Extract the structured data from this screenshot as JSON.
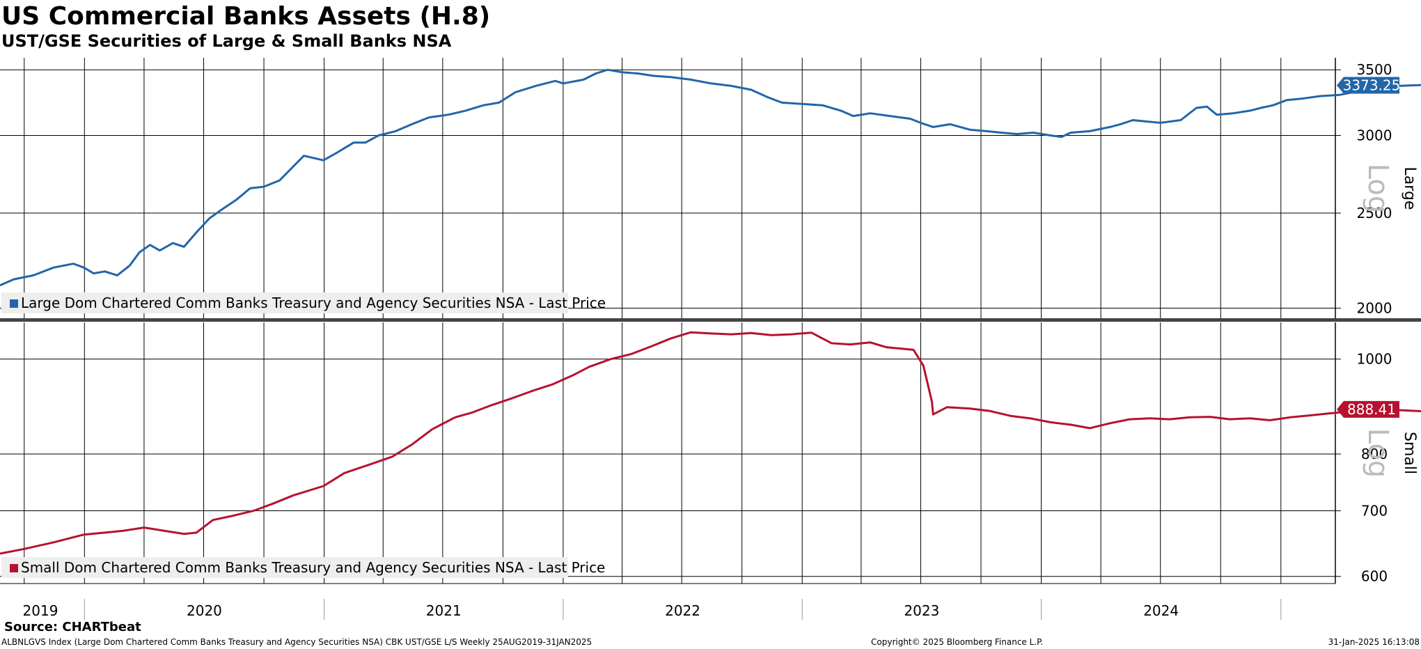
{
  "title": "US Commercial Banks Assets (H.8)",
  "subtitle": "UST/GSE Securities of Large & Small Banks NSA",
  "source": "Source: CHARTbeat",
  "footer": {
    "left": "ALBNLGVS Index (Large Dom Chartered Comm Banks Treasury and Agency Securities NSA) CBK UST/GSE L/S  Weekly 25AUG2019-31JAN2025",
    "center": "Copyright© 2025 Bloomberg Finance L.P.",
    "right": "31-Jan-2025 16:13:08"
  },
  "colors": {
    "large": "#2166a8",
    "small": "#b5122f",
    "grid": "#000000",
    "legend_bg": "#eeeeee",
    "divider": "#444444"
  },
  "chart_data": [
    {
      "type": "line",
      "panel": "Large",
      "scale": "log",
      "axis_label": "Log",
      "panel_label": "Large",
      "ylim": [
        1950,
        3600
      ],
      "yticks": [
        2000,
        2500,
        3000,
        3500
      ],
      "grid": true,
      "legend_placement": "bottom-left",
      "last_value_label": "3373.25",
      "series": [
        {
          "name": "Large Dom Chartered Comm Banks Treasury and Agency Securities NSA - Last Price",
          "color": "#2166a8",
          "points": [
            [
              "2019-08-25",
              2110
            ],
            [
              "2019-09-15",
              2140
            ],
            [
              "2019-10-15",
              2160
            ],
            [
              "2019-11-15",
              2200
            ],
            [
              "2019-12-15",
              2220
            ],
            [
              "2019-12-31",
              2200
            ],
            [
              "2020-01-15",
              2170
            ],
            [
              "2020-02-01",
              2180
            ],
            [
              "2020-02-20",
              2160
            ],
            [
              "2020-03-10",
              2210
            ],
            [
              "2020-03-25",
              2280
            ],
            [
              "2020-04-10",
              2320
            ],
            [
              "2020-04-25",
              2290
            ],
            [
              "2020-05-15",
              2330
            ],
            [
              "2020-06-01",
              2310
            ],
            [
              "2020-06-20",
              2390
            ],
            [
              "2020-07-10",
              2470
            ],
            [
              "2020-08-01",
              2530
            ],
            [
              "2020-08-20",
              2580
            ],
            [
              "2020-09-10",
              2650
            ],
            [
              "2020-10-01",
              2660
            ],
            [
              "2020-10-25",
              2700
            ],
            [
              "2020-11-15",
              2790
            ],
            [
              "2020-12-01",
              2860
            ],
            [
              "2020-12-31",
              2830
            ],
            [
              "2021-01-20",
              2880
            ],
            [
              "2021-02-15",
              2950
            ],
            [
              "2021-03-05",
              2950
            ],
            [
              "2021-03-25",
              3000
            ],
            [
              "2021-04-20",
              3030
            ],
            [
              "2021-05-15",
              3080
            ],
            [
              "2021-06-10",
              3130
            ],
            [
              "2021-07-10",
              3150
            ],
            [
              "2021-08-05",
              3180
            ],
            [
              "2021-09-01",
              3220
            ],
            [
              "2021-09-25",
              3240
            ],
            [
              "2021-10-20",
              3320
            ],
            [
              "2021-11-20",
              3370
            ],
            [
              "2021-12-20",
              3410
            ],
            [
              "2022-01-01",
              3390
            ],
            [
              "2022-02-01",
              3420
            ],
            [
              "2022-02-20",
              3470
            ],
            [
              "2022-03-10",
              3500
            ],
            [
              "2022-04-01",
              3480
            ],
            [
              "2022-04-25",
              3470
            ],
            [
              "2022-05-20",
              3450
            ],
            [
              "2022-06-15",
              3440
            ],
            [
              "2022-07-15",
              3420
            ],
            [
              "2022-08-15",
              3390
            ],
            [
              "2022-09-15",
              3370
            ],
            [
              "2022-10-15",
              3340
            ],
            [
              "2022-11-10",
              3280
            ],
            [
              "2022-12-01",
              3240
            ],
            [
              "2023-01-01",
              3230
            ],
            [
              "2023-02-01",
              3220
            ],
            [
              "2023-03-01",
              3180
            ],
            [
              "2023-03-20",
              3140
            ],
            [
              "2023-04-15",
              3160
            ],
            [
              "2023-05-15",
              3140
            ],
            [
              "2023-06-15",
              3120
            ],
            [
              "2023-07-01",
              3090
            ],
            [
              "2023-07-20",
              3060
            ],
            [
              "2023-08-15",
              3080
            ],
            [
              "2023-09-15",
              3040
            ],
            [
              "2023-10-10",
              3030
            ],
            [
              "2023-11-01",
              3020
            ],
            [
              "2023-11-25",
              3010
            ],
            [
              "2023-12-20",
              3020
            ],
            [
              "2024-01-15",
              3000
            ],
            [
              "2024-02-01",
              2990
            ],
            [
              "2024-02-15",
              3020
            ],
            [
              "2024-03-15",
              3030
            ],
            [
              "2024-04-15",
              3060
            ],
            [
              "2024-05-01",
              3080
            ],
            [
              "2024-05-20",
              3110
            ],
            [
              "2024-06-10",
              3100
            ],
            [
              "2024-07-01",
              3090
            ],
            [
              "2024-08-01",
              3110
            ],
            [
              "2024-08-25",
              3200
            ],
            [
              "2024-09-10",
              3210
            ],
            [
              "2024-09-25",
              3150
            ],
            [
              "2024-10-20",
              3160
            ],
            [
              "2024-11-15",
              3180
            ],
            [
              "2024-12-01",
              3200
            ],
            [
              "2024-12-20",
              3220
            ],
            [
              "2025-01-10",
              3260
            ],
            [
              "2025-02-01",
              3270
            ],
            [
              "2025-03-01",
              3290
            ],
            [
              "2025-04-01",
              3300
            ],
            [
              "2025-05-01",
              3330
            ],
            [
              "2025-06-01",
              3350
            ],
            [
              "2025-07-01",
              3370
            ],
            [
              "2025-08-15",
              3380
            ],
            [
              "2025-09-15",
              3370
            ],
            [
              "2025-10-10",
              3375
            ]
          ]
        }
      ]
    },
    {
      "type": "line",
      "panel": "Small",
      "scale": "log",
      "axis_label": "Log",
      "panel_label": "Small",
      "ylim": [
        590,
        1090
      ],
      "yticks": [
        600,
        700,
        800,
        1000
      ],
      "grid": true,
      "legend_placement": "bottom-left",
      "last_value_label": "888.41",
      "series": [
        {
          "name": "Small Dom Chartered Comm Banks Treasury and Agency Securities NSA - Last Price",
          "color": "#b5122f",
          "points": [
            [
              "2019-08-25",
              633
            ],
            [
              "2019-10-01",
              640
            ],
            [
              "2019-11-15",
              650
            ],
            [
              "2019-12-31",
              662
            ],
            [
              "2020-02-01",
              665
            ],
            [
              "2020-03-01",
              668
            ],
            [
              "2020-04-01",
              673
            ],
            [
              "2020-05-01",
              668
            ],
            [
              "2020-06-01",
              663
            ],
            [
              "2020-06-20",
              665
            ],
            [
              "2020-07-15",
              685
            ],
            [
              "2020-08-15",
              692
            ],
            [
              "2020-09-15",
              700
            ],
            [
              "2020-10-15",
              712
            ],
            [
              "2020-11-15",
              726
            ],
            [
              "2020-12-31",
              742
            ],
            [
              "2021-02-01",
              765
            ],
            [
              "2021-03-15",
              782
            ],
            [
              "2021-04-15",
              795
            ],
            [
              "2021-05-15",
              818
            ],
            [
              "2021-06-15",
              848
            ],
            [
              "2021-07-20",
              872
            ],
            [
              "2021-08-15",
              882
            ],
            [
              "2021-09-15",
              898
            ],
            [
              "2021-10-15",
              912
            ],
            [
              "2021-11-15",
              928
            ],
            [
              "2021-12-15",
              942
            ],
            [
              "2022-01-15",
              962
            ],
            [
              "2022-02-10",
              982
            ],
            [
              "2022-03-15",
              1000
            ],
            [
              "2022-04-15",
              1012
            ],
            [
              "2022-05-15",
              1030
            ],
            [
              "2022-06-15",
              1050
            ],
            [
              "2022-07-15",
              1065
            ],
            [
              "2022-08-15",
              1062
            ],
            [
              "2022-09-15",
              1060
            ],
            [
              "2022-10-15",
              1063
            ],
            [
              "2022-11-15",
              1058
            ],
            [
              "2022-12-15",
              1060
            ],
            [
              "2023-01-15",
              1064
            ],
            [
              "2023-02-15",
              1038
            ],
            [
              "2023-03-15",
              1035
            ],
            [
              "2023-04-15",
              1040
            ],
            [
              "2023-05-10",
              1028
            ],
            [
              "2023-06-01",
              1025
            ],
            [
              "2023-06-20",
              1022
            ],
            [
              "2023-07-05",
              985
            ],
            [
              "2023-07-18",
              905
            ],
            [
              "2023-07-20",
              878
            ],
            [
              "2023-08-10",
              893
            ],
            [
              "2023-09-15",
              890
            ],
            [
              "2023-10-15",
              885
            ],
            [
              "2023-11-15",
              875
            ],
            [
              "2023-12-15",
              870
            ],
            [
              "2024-01-15",
              862
            ],
            [
              "2024-02-15",
              857
            ],
            [
              "2024-03-15",
              850
            ],
            [
              "2024-04-15",
              860
            ],
            [
              "2024-05-15",
              868
            ],
            [
              "2024-06-15",
              870
            ],
            [
              "2024-07-15",
              868
            ],
            [
              "2024-08-15",
              872
            ],
            [
              "2024-09-15",
              873
            ],
            [
              "2024-10-15",
              868
            ],
            [
              "2024-11-15",
              870
            ],
            [
              "2024-12-15",
              866
            ],
            [
              "2025-01-15",
              872
            ],
            [
              "2025-02-15",
              876
            ],
            [
              "2025-03-15",
              880
            ],
            [
              "2025-04-15",
              884
            ],
            [
              "2025-05-15",
              885
            ],
            [
              "2025-06-15",
              888
            ],
            [
              "2025-07-15",
              886
            ],
            [
              "2025-08-15",
              884
            ],
            [
              "2025-09-15",
              890
            ],
            [
              "2025-10-10",
              888.41
            ]
          ]
        }
      ]
    }
  ],
  "x_axis": {
    "labels": [
      "2019",
      "2020",
      "2021",
      "2022",
      "2023",
      "2024"
    ]
  }
}
